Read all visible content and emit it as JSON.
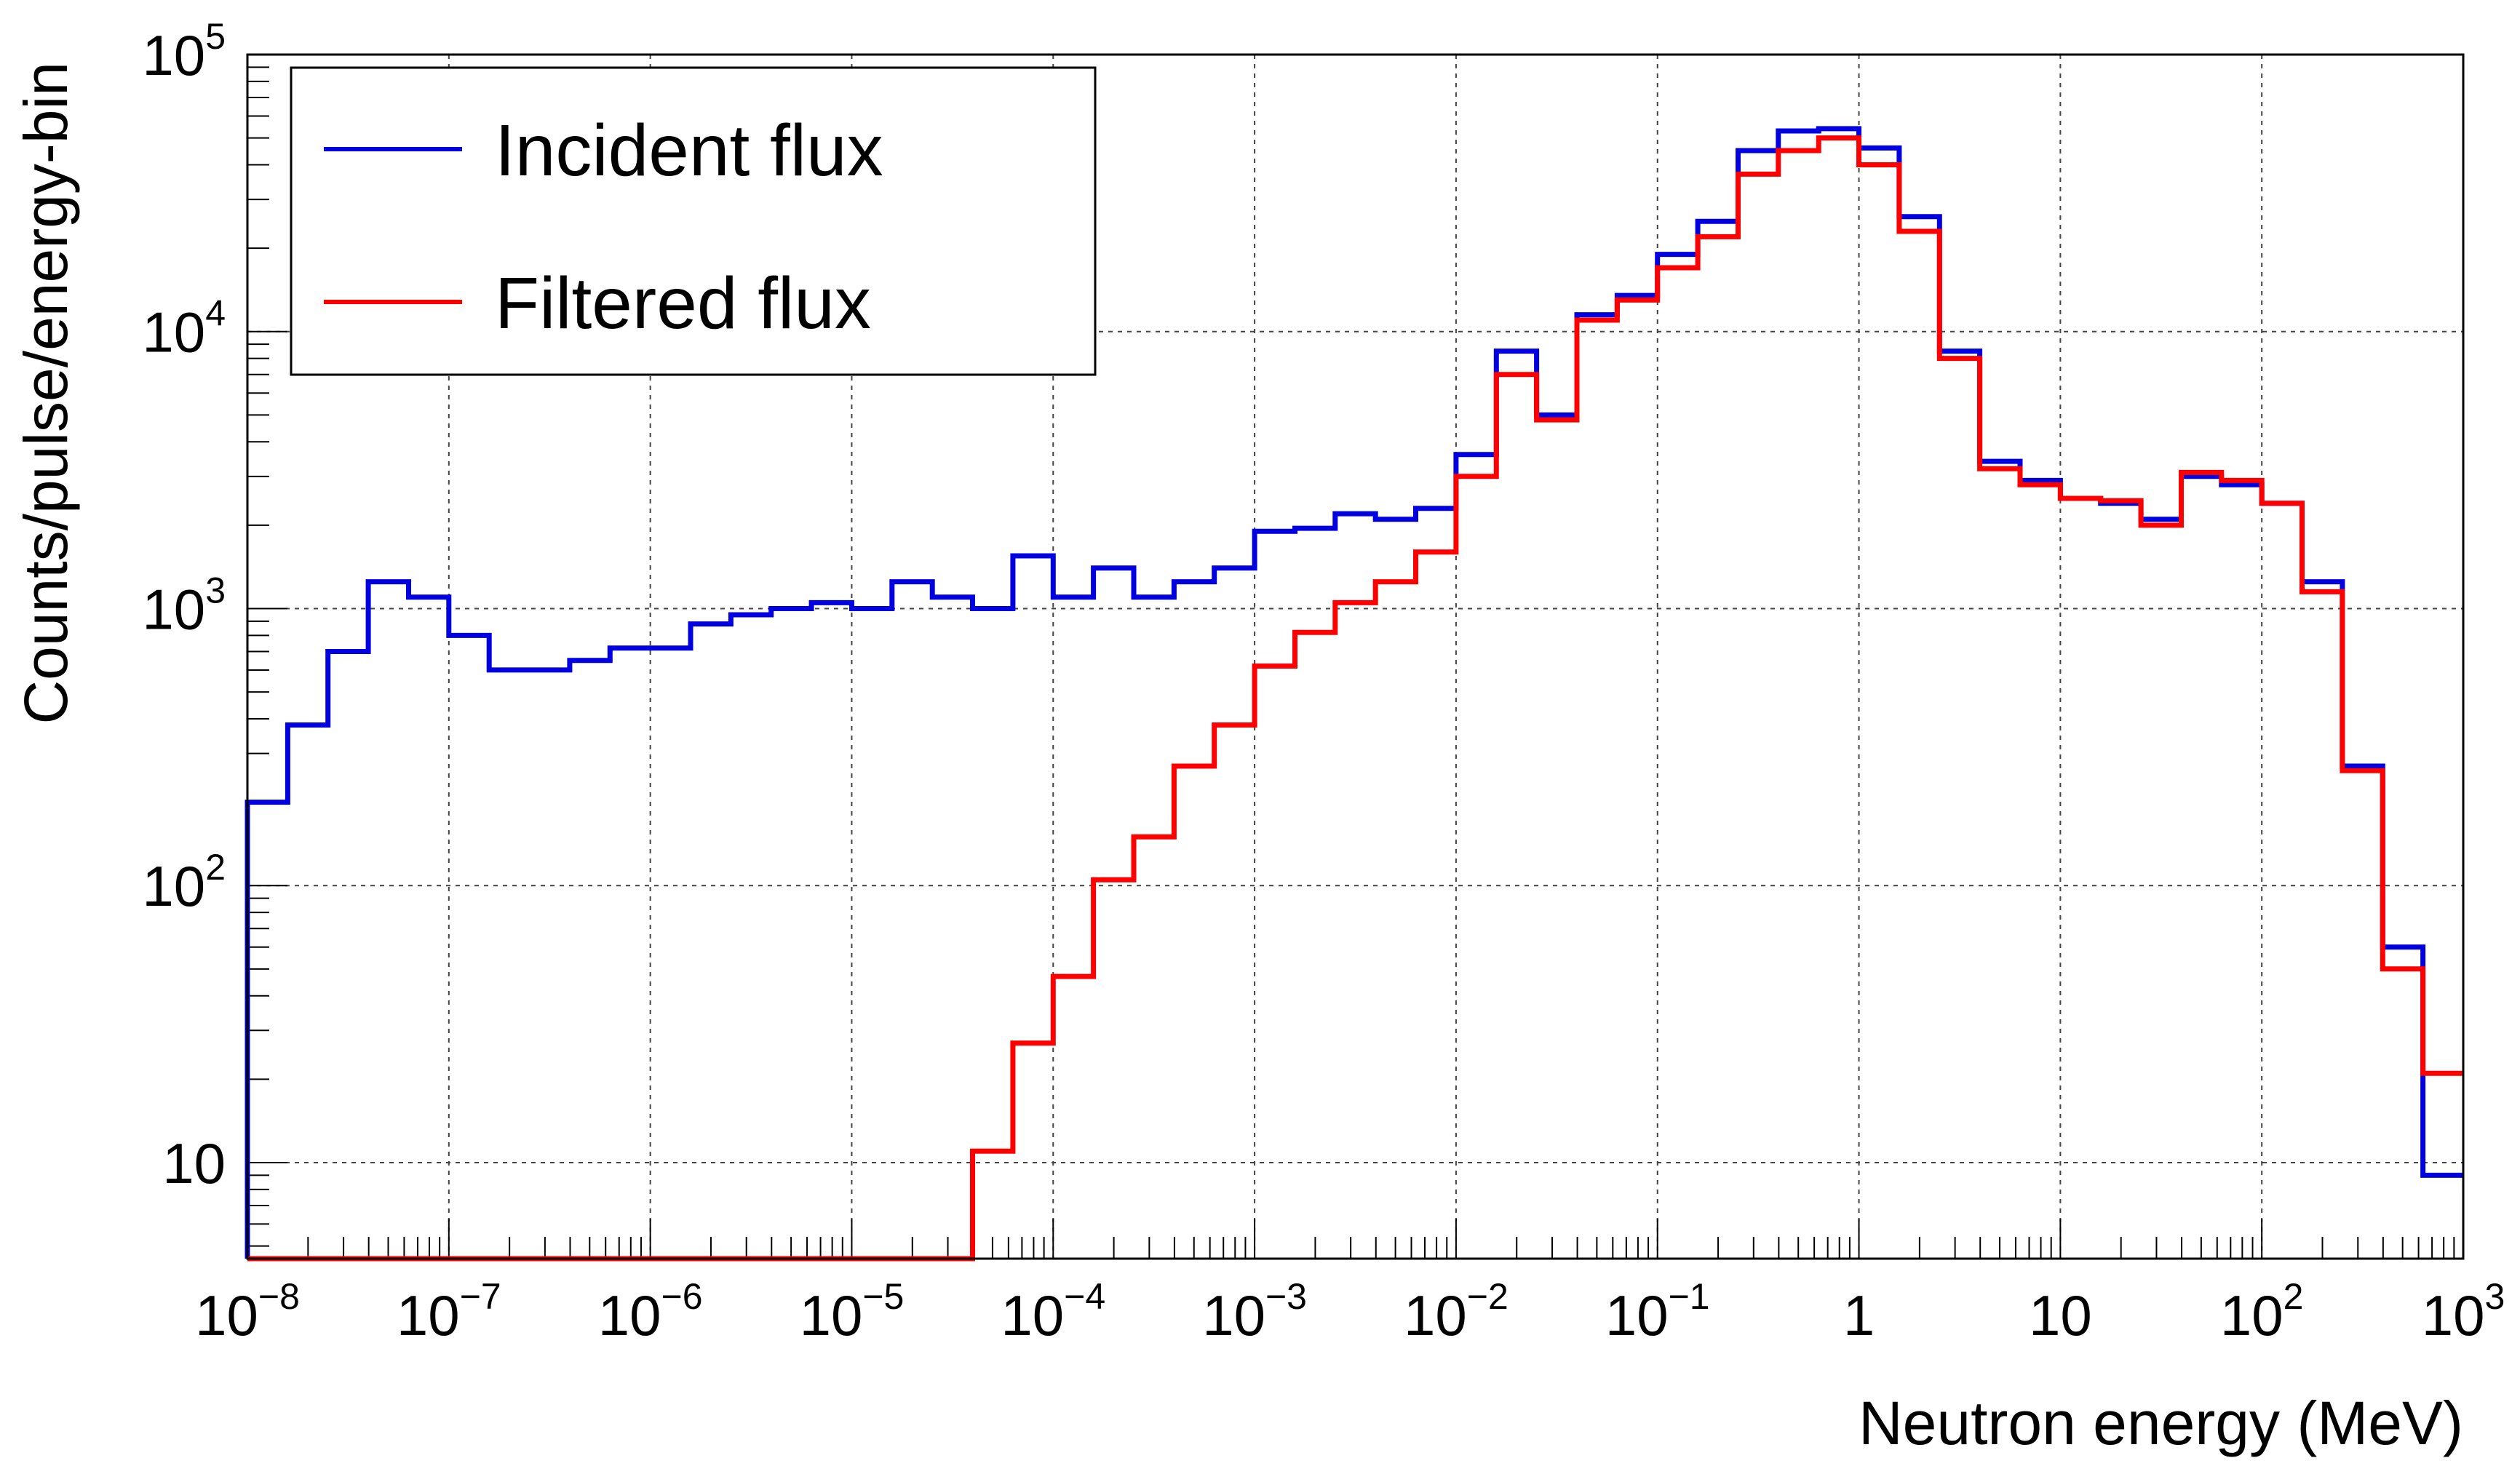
{
  "chart_data": {
    "type": "line",
    "step": true,
    "xlabel": "Neutron energy (MeV)",
    "ylabel": "Counts/pulse/energy-bin",
    "xscale": "log",
    "yscale": "log",
    "xlim": [
      1e-08,
      1000
    ],
    "ylim": [
      4.5,
      100000
    ],
    "grid": true,
    "legend_position": "top-left",
    "x_ticks": [
      {
        "value": 1e-08,
        "base": "10",
        "exp": "−8"
      },
      {
        "value": 1e-07,
        "base": "10",
        "exp": "−7"
      },
      {
        "value": 1e-06,
        "base": "10",
        "exp": "−6"
      },
      {
        "value": 1e-05,
        "base": "10",
        "exp": "−5"
      },
      {
        "value": 0.0001,
        "base": "10",
        "exp": "−4"
      },
      {
        "value": 0.001,
        "base": "10",
        "exp": "−3"
      },
      {
        "value": 0.01,
        "base": "10",
        "exp": "−2"
      },
      {
        "value": 0.1,
        "base": "10",
        "exp": "−1"
      },
      {
        "value": 1,
        "base": "1",
        "exp": ""
      },
      {
        "value": 10,
        "base": "10",
        "exp": ""
      },
      {
        "value": 100,
        "base": "10",
        "exp": "2"
      },
      {
        "value": 1000,
        "base": "10",
        "exp": "3"
      }
    ],
    "y_ticks": [
      {
        "value": 10,
        "base": "10",
        "exp": ""
      },
      {
        "value": 100,
        "base": "10",
        "exp": "2"
      },
      {
        "value": 1000,
        "base": "10",
        "exp": "3"
      },
      {
        "value": 10000,
        "base": "10",
        "exp": "4"
      },
      {
        "value": 100000,
        "base": "10",
        "exp": "5"
      }
    ],
    "bin_edges_log10": [
      -8.0,
      -7.8,
      -7.6,
      -7.4,
      -7.2,
      -7.0,
      -6.8,
      -6.6,
      -6.4,
      -6.2,
      -6.0,
      -5.8,
      -5.6,
      -5.4,
      -5.2,
      -5.0,
      -4.8,
      -4.6,
      -4.4,
      -4.2,
      -4.0,
      -3.8,
      -3.6,
      -3.4,
      -3.2,
      -3.0,
      -2.8,
      -2.6,
      -2.4,
      -2.2,
      -2.0,
      -1.8,
      -1.6,
      -1.4,
      -1.2,
      -1.0,
      -0.8,
      -0.6,
      -0.4,
      -0.2,
      0.0,
      0.2,
      0.4,
      0.6,
      0.8,
      1.0,
      1.2,
      1.4,
      1.6,
      1.8,
      2.0,
      2.2,
      2.4,
      2.6,
      2.8,
      3.0
    ],
    "series": [
      {
        "name": "Incident flux",
        "color": "#0000e0",
        "values": [
          200,
          380,
          700,
          1250,
          1100,
          800,
          600,
          600,
          650,
          720,
          720,
          880,
          950,
          1000,
          1050,
          1000,
          1250,
          1100,
          1000,
          1550,
          1100,
          1400,
          1100,
          1250,
          1400,
          1900,
          1950,
          2200,
          2100,
          2300,
          3600,
          8500,
          5000,
          11500,
          13500,
          19000,
          25000,
          45000,
          53000,
          54000,
          46000,
          26000,
          8500,
          3400,
          2900,
          2500,
          2400,
          2100,
          3000,
          2800,
          2400,
          1250,
          270,
          60,
          9
        ]
      },
      {
        "name": "Filtered flux",
        "color": "#ff0000",
        "values": [
          4.5,
          4.5,
          4.5,
          4.5,
          4.5,
          4.5,
          4.5,
          4.5,
          4.5,
          4.5,
          4.5,
          4.5,
          4.5,
          4.5,
          4.5,
          4.5,
          4.5,
          4.5,
          11,
          27,
          47,
          105,
          150,
          270,
          380,
          620,
          820,
          1050,
          1250,
          1600,
          3000,
          7000,
          4800,
          11000,
          13000,
          17000,
          22000,
          37000,
          45000,
          50000,
          40000,
          23000,
          8000,
          3200,
          2800,
          2500,
          2450,
          2000,
          3100,
          2900,
          2400,
          1150,
          260,
          50,
          21
        ]
      }
    ]
  }
}
